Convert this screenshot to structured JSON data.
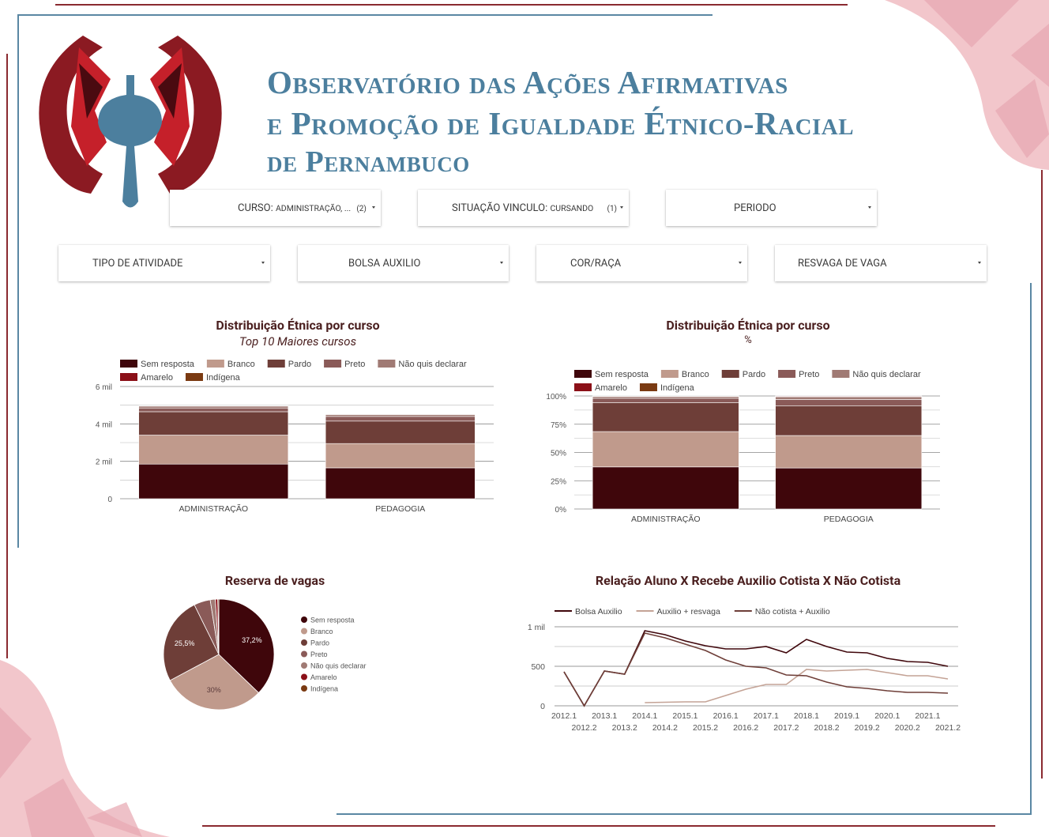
{
  "header": {
    "title_line1": "Observatório das Ações Afirmativas",
    "title_line2": "e Promoção de Igualdade Étnico-Racial",
    "title_line3": "de Pernambuco",
    "logo_icon": "observatorio-logo",
    "title_color": "#4c7f9e"
  },
  "filters": {
    "curso": {
      "label": "CURSO",
      "value": "ADMINISTRAÇÃO, ...",
      "count": "(2)"
    },
    "situacao": {
      "label": "SITUAÇÃO VINCULO",
      "value": "CURSANDO",
      "count": "(1)"
    },
    "periodo": {
      "label": "PERIODO"
    },
    "tipo_atividade": {
      "label": "TIPO DE ATIVIDADE"
    },
    "bolsa_auxilio": {
      "label": "BOLSA AUXILIO"
    },
    "cor_raca": {
      "label": "COR/RAÇA"
    },
    "resvaga": {
      "label": "RESVAGA DE VAGA"
    }
  },
  "palette": {
    "Sem resposta": "#3f060b",
    "Branco": "#c09a8c",
    "Pardo": "#6e3e38",
    "Preto": "#8a5a58",
    "Não quis declarar": "#a07a74",
    "Amarelo": "#8b1018",
    "Indígena": "#7a3a12"
  },
  "chart_data": [
    {
      "type": "bar",
      "stacked": true,
      "title": "Distribuição Étnica por curso",
      "subtitle": "Top 10 Maiores cursos",
      "categories": [
        "ADMINISTRAÇÃO",
        "PEDAGOGIA"
      ],
      "series": [
        {
          "name": "Sem resposta",
          "values": [
            1850,
            1650
          ]
        },
        {
          "name": "Branco",
          "values": [
            1550,
            1300
          ]
        },
        {
          "name": "Pardo",
          "values": [
            1250,
            1200
          ]
        },
        {
          "name": "Preto",
          "values": [
            200,
            250
          ]
        },
        {
          "name": "Não quis declarar",
          "values": [
            100,
            100
          ]
        },
        {
          "name": "Amarelo",
          "values": [
            20,
            15
          ]
        },
        {
          "name": "Indígena",
          "values": [
            10,
            5
          ]
        }
      ],
      "yticks": [
        "0",
        "2 mil",
        "4 mil",
        "6 mil"
      ],
      "ylim": [
        0,
        6000
      ],
      "grid": true,
      "legend_position": "top"
    },
    {
      "type": "bar",
      "stacked": true,
      "title": "Distribuição Étnica por curso",
      "subtitle": "%",
      "categories": [
        "ADMINISTRAÇÃO",
        "PEDAGOGIA"
      ],
      "series": [
        {
          "name": "Sem resposta",
          "values": [
            37.2,
            36.3
          ]
        },
        {
          "name": "Branco",
          "values": [
            31.3,
            28.7
          ]
        },
        {
          "name": "Pardo",
          "values": [
            25.5,
            26.4
          ]
        },
        {
          "name": "Preto",
          "values": [
            4.0,
            5.5
          ]
        },
        {
          "name": "Não quis declarar",
          "values": [
            1.5,
            2.4
          ]
        },
        {
          "name": "Amarelo",
          "values": [
            0.3,
            0.5
          ]
        },
        {
          "name": "Indígena",
          "values": [
            0.2,
            0.2
          ]
        }
      ],
      "yticks": [
        "0%",
        "25%",
        "50%",
        "75%",
        "100%"
      ],
      "ylim": [
        0,
        100
      ],
      "grid": true,
      "legend_position": "top"
    },
    {
      "type": "pie",
      "title": "Reserva de vagas",
      "labels": [
        "Sem resposta",
        "Branco",
        "Pardo",
        "Preto",
        "Não quis declarar",
        "Amarelo",
        "Indígena"
      ],
      "values": [
        37.2,
        30,
        25.5,
        4.8,
        1.5,
        0.7,
        0.3
      ],
      "value_labels": [
        "37,2%",
        "30%",
        "25,5%",
        "",
        "",
        "",
        ""
      ],
      "legend_position": "right"
    },
    {
      "type": "line",
      "title": "Relação Aluno X Recebe Auxilio Cotista X Não Cotista",
      "x": [
        "2012.1",
        "2012.2",
        "2013.1",
        "2013.2",
        "2014.1",
        "2014.2",
        "2015.1",
        "2015.2",
        "2016.1",
        "2016.2",
        "2017.1",
        "2017.2",
        "2018.1",
        "2018.2",
        "2019.1",
        "2019.2",
        "2020.1",
        "2020.2",
        "2021.1",
        "2021.2"
      ],
      "series": [
        {
          "name": "Bolsa Auxilio",
          "color": "#3f060b",
          "values": [
            430,
            0,
            440,
            400,
            950,
            900,
            820,
            760,
            720,
            720,
            750,
            670,
            840,
            750,
            680,
            670,
            600,
            560,
            550,
            500
          ]
        },
        {
          "name": "Auxilio + resvaga",
          "color": "#c4a396",
          "values": [
            null,
            null,
            null,
            null,
            40,
            45,
            50,
            50,
            130,
            210,
            270,
            270,
            460,
            440,
            450,
            460,
            420,
            380,
            380,
            340
          ]
        },
        {
          "name": "Não cotista + Auxilio",
          "color": "#6e3e38",
          "values": [
            430,
            0,
            440,
            400,
            920,
            860,
            780,
            700,
            580,
            500,
            480,
            390,
            380,
            300,
            240,
            220,
            190,
            170,
            170,
            160
          ]
        }
      ],
      "yticks": [
        "0",
        "500",
        "1 mil"
      ],
      "ylim": [
        0,
        1000
      ],
      "grid": true,
      "legend_position": "top"
    }
  ]
}
